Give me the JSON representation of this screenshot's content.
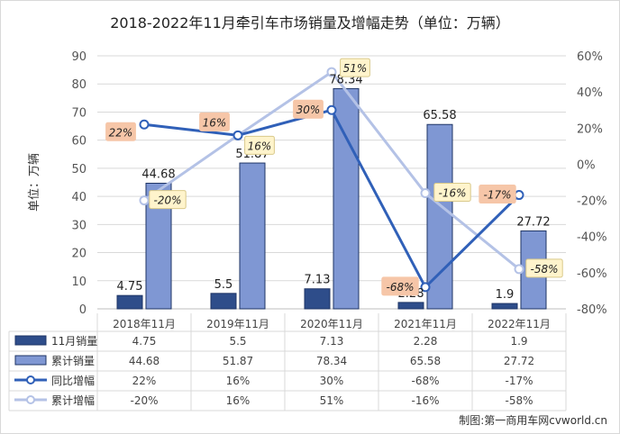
{
  "title": "2018-2022年11月牵引车市场销量及增幅走势（单位：万辆）",
  "footer": "制图:第一商用车网cvworld.cn",
  "chart_data": {
    "type": "bar",
    "title": "2018-2022年11月牵引车市场销量及增幅走势（单位：万辆）",
    "ylabel": "单位：万辆",
    "categories": [
      "2018年11月",
      "2019年11月",
      "2020年11月",
      "2021年11月",
      "2022年11月"
    ],
    "ylim": [
      0,
      90
    ],
    "yticks": [
      0,
      10,
      20,
      30,
      40,
      50,
      60,
      70,
      80,
      90
    ],
    "y2lim": [
      -80,
      60
    ],
    "y2ticks": [
      "-80%",
      "-60%",
      "-40%",
      "-20%",
      "0%",
      "20%",
      "40%",
      "60%"
    ],
    "y2tick_values": [
      -80,
      -60,
      -40,
      -20,
      0,
      20,
      40,
      60
    ],
    "series": [
      {
        "name": "11月销量",
        "kind": "bar",
        "axis": "left",
        "color": "#2e4d8a",
        "values": [
          4.75,
          5.5,
          7.13,
          2.28,
          1.9
        ],
        "labels": [
          "4.75",
          "5.5",
          "7.13",
          "2.28",
          "1.9"
        ]
      },
      {
        "name": "累计销量",
        "kind": "bar",
        "axis": "left",
        "color": "#7f97d3",
        "values": [
          44.68,
          51.87,
          78.34,
          65.58,
          27.72
        ],
        "labels": [
          "44.68",
          "51.87",
          "78.34",
          "65.58",
          "27.72"
        ]
      },
      {
        "name": "同比增幅",
        "kind": "line",
        "axis": "right",
        "color": "#3060b8",
        "values": [
          22,
          16,
          30,
          -68,
          -17
        ],
        "labels": [
          "22%",
          "16%",
          "30%",
          "-68%",
          "-17%"
        ]
      },
      {
        "name": "累计增幅",
        "kind": "line",
        "axis": "right",
        "color": "#b4c2e6",
        "values": [
          -20,
          16,
          51,
          -16,
          -58
        ],
        "labels": [
          "-20%",
          "16%",
          "51%",
          "-16%",
          "-58%"
        ]
      }
    ]
  }
}
